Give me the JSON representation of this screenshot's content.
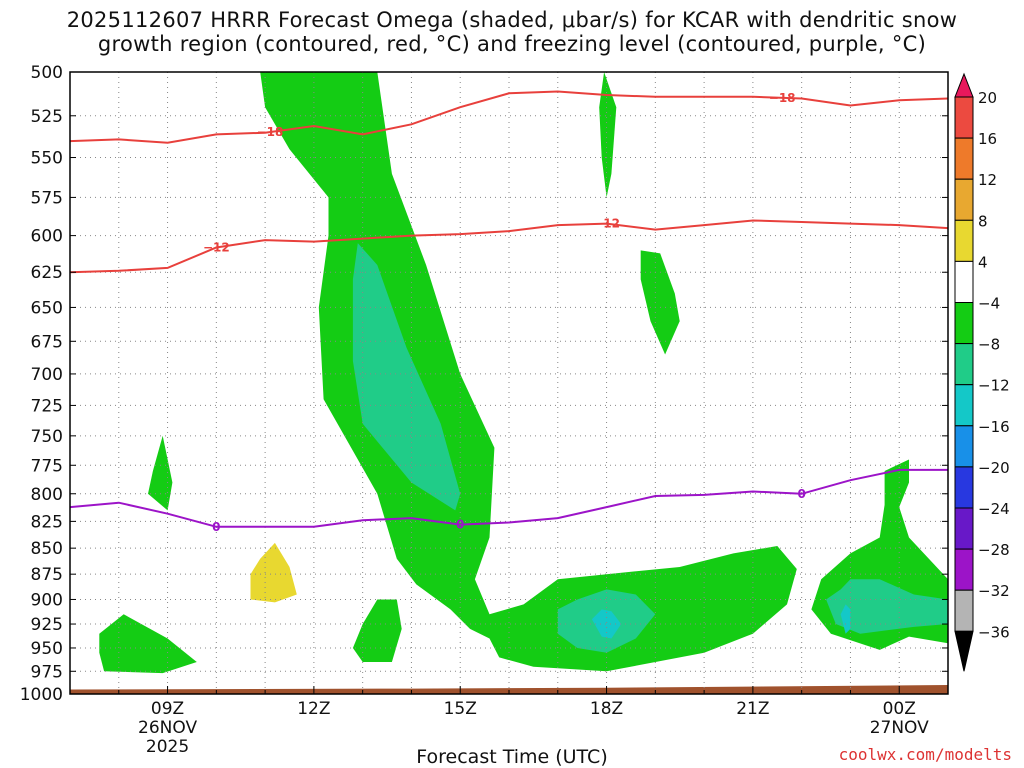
{
  "title": {
    "line1": "2025112607 HRRR Forecast Omega (shaded, μbar/s) for KCAR with dendritic snow",
    "line2": "growth region (contoured, red, °C) and freezing level (contoured, purple, °C)"
  },
  "xlabel": "Forecast Time (UTC)",
  "credit": "coolwx.com/modelts",
  "chart_data": {
    "type": "heatmap",
    "x_axis": {
      "ticks": [
        {
          "label": "09Z",
          "sub": [
            "26NOV",
            "2025"
          ],
          "hour": 9
        },
        {
          "label": "12Z",
          "sub": [],
          "hour": 12
        },
        {
          "label": "15Z",
          "sub": [],
          "hour": 15
        },
        {
          "label": "18Z",
          "sub": [],
          "hour": 18
        },
        {
          "label": "21Z",
          "sub": [],
          "hour": 21
        },
        {
          "label": "00Z",
          "sub": [
            "27NOV"
          ],
          "hour": 24
        }
      ],
      "range_hours": [
        7,
        25
      ]
    },
    "y_axis": {
      "ticks": [
        500,
        525,
        550,
        575,
        600,
        625,
        650,
        675,
        700,
        725,
        750,
        775,
        800,
        825,
        850,
        875,
        900,
        925,
        950,
        975,
        1000
      ],
      "range": [
        500,
        1000
      ],
      "scale": "log-pressure"
    },
    "grid": true,
    "colorbar": {
      "labels": [
        "20",
        "16",
        "12",
        "8",
        "4",
        "−4",
        "−8",
        "−12",
        "−16",
        "−20",
        "−24",
        "−28",
        "−32",
        "−36"
      ],
      "colors": [
        "#e8185c",
        "#ec4a40",
        "#ee7a2a",
        "#e8a830",
        "#e8d830",
        "#ffffff",
        "#14cc14",
        "#20cc88",
        "#14c8c8",
        "#1890e8",
        "#2838e0",
        "#6818c8",
        "#9c14c8",
        "#b4b4b4",
        "#000000"
      ]
    },
    "shaded_regions": [
      {
        "level": "-4",
        "color": "#14cc14",
        "polygons": [
          [
            [
              10.9,
              500
            ],
            [
              13.3,
              500
            ],
            [
              13.6,
              560
            ],
            [
              14.3,
              620
            ],
            [
              15.0,
              700
            ],
            [
              15.7,
              760
            ],
            [
              15.6,
              840
            ],
            [
              15.3,
              880
            ],
            [
              15.6,
              915
            ],
            [
              16.3,
              905
            ],
            [
              17.0,
              880
            ],
            [
              18.0,
              875
            ],
            [
              19.5,
              868
            ],
            [
              20.6,
              855
            ],
            [
              21.5,
              848
            ],
            [
              21.9,
              870
            ],
            [
              21.7,
              905
            ],
            [
              21.0,
              935
            ],
            [
              20.0,
              955
            ],
            [
              18.0,
              975
            ],
            [
              16.5,
              970
            ],
            [
              15.8,
              960
            ],
            [
              15.6,
              940
            ],
            [
              15.2,
              930
            ],
            [
              14.8,
              910
            ],
            [
              14.1,
              885
            ],
            [
              13.7,
              860
            ],
            [
              13.3,
              800
            ],
            [
              12.2,
              720
            ],
            [
              12.1,
              650
            ],
            [
              12.3,
              600
            ],
            [
              12.3,
              575
            ],
            [
              11.5,
              545
            ],
            [
              11.0,
              520
            ]
          ],
          [
            [
              7.6,
              935
            ],
            [
              8.1,
              915
            ],
            [
              9.0,
              940
            ],
            [
              9.6,
              965
            ],
            [
              8.9,
              977
            ],
            [
              7.7,
              975
            ],
            [
              7.6,
              955
            ]
          ],
          [
            [
              8.6,
              800
            ],
            [
              8.7,
              780
            ],
            [
              8.9,
              750
            ],
            [
              9.1,
              790
            ],
            [
              9.0,
              815
            ]
          ],
          [
            [
              13.3,
              900
            ],
            [
              13.7,
              900
            ],
            [
              13.8,
              930
            ],
            [
              13.6,
              965
            ],
            [
              13.0,
              965
            ],
            [
              12.8,
              950
            ],
            [
              13.0,
              925
            ]
          ],
          [
            [
              17.95,
              500
            ],
            [
              18.2,
              520
            ],
            [
              18.1,
              560
            ],
            [
              18.0,
              575
            ],
            [
              17.9,
              550
            ],
            [
              17.85,
              520
            ]
          ],
          [
            [
              18.7,
              610
            ],
            [
              19.1,
              612
            ],
            [
              19.4,
              640
            ],
            [
              19.5,
              660
            ],
            [
              19.2,
              685
            ],
            [
              18.9,
              660
            ],
            [
              18.7,
              630
            ]
          ],
          [
            [
              23.7,
              780
            ],
            [
              24.2,
              770
            ],
            [
              24.2,
              790
            ],
            [
              24.0,
              812
            ],
            [
              24.2,
              840
            ],
            [
              25.0,
              880
            ],
            [
              25.0,
              945
            ],
            [
              24.2,
              938
            ],
            [
              23.6,
              952
            ],
            [
              22.6,
              935
            ],
            [
              22.2,
              910
            ],
            [
              22.4,
              880
            ],
            [
              23.0,
              855
            ],
            [
              23.6,
              840
            ],
            [
              23.7,
              810
            ]
          ]
        ]
      },
      {
        "level": "-8",
        "color": "#20cc88",
        "polygons": [
          [
            [
              12.9,
              605
            ],
            [
              13.3,
              620
            ],
            [
              13.9,
              680
            ],
            [
              14.6,
              740
            ],
            [
              15.0,
              800
            ],
            [
              14.9,
              815
            ],
            [
              14.0,
              790
            ],
            [
              13.0,
              740
            ],
            [
              12.8,
              690
            ],
            [
              12.8,
              630
            ]
          ],
          [
            [
              17.0,
              910
            ],
            [
              17.4,
              900
            ],
            [
              18.0,
              890
            ],
            [
              18.6,
              895
            ],
            [
              19.0,
              915
            ],
            [
              18.6,
              940
            ],
            [
              18.0,
              955
            ],
            [
              17.4,
              950
            ],
            [
              17.0,
              935
            ]
          ],
          [
            [
              22.5,
              900
            ],
            [
              22.8,
              890
            ],
            [
              23.0,
              880
            ],
            [
              23.6,
              880
            ],
            [
              24.3,
              895
            ],
            [
              25.0,
              900
            ],
            [
              25.0,
              925
            ],
            [
              24.3,
              928
            ],
            [
              23.2,
              935
            ],
            [
              22.7,
              925
            ]
          ]
        ]
      },
      {
        "level": "-12",
        "color": "#14c8c8",
        "polygons": [
          [
            [
              17.7,
              920
            ],
            [
              17.9,
              910
            ],
            [
              18.1,
              912
            ],
            [
              18.3,
              925
            ],
            [
              18.1,
              940
            ],
            [
              17.9,
              938
            ]
          ],
          [
            [
              22.8,
              915
            ],
            [
              22.9,
              905
            ],
            [
              23.0,
              910
            ],
            [
              23.0,
              930
            ],
            [
              22.9,
              935
            ]
          ]
        ]
      },
      {
        "level": "4",
        "color": "#e8d830",
        "polygons": [
          [
            [
              10.7,
              875
            ],
            [
              10.9,
              860
            ],
            [
              11.2,
              845
            ],
            [
              11.5,
              868
            ],
            [
              11.65,
              895
            ],
            [
              11.2,
              903
            ],
            [
              10.7,
              900
            ]
          ]
        ]
      }
    ],
    "terrain": {
      "color": "#a0522d",
      "points": [
        [
          7,
          995
        ],
        [
          14,
          994
        ],
        [
          18,
          993
        ],
        [
          25,
          990
        ]
      ]
    },
    "contours": [
      {
        "name": "-18",
        "color": "#e8403c",
        "label_at": [
          {
            "x": 11.1,
            "text": "−18"
          },
          {
            "x": 21.6,
            "text": "−18"
          }
        ],
        "points": [
          [
            7,
            540
          ],
          [
            8,
            539
          ],
          [
            9,
            541
          ],
          [
            10,
            536
          ],
          [
            11,
            535
          ],
          [
            12,
            531
          ],
          [
            13,
            536
          ],
          [
            14,
            530
          ],
          [
            15,
            520
          ],
          [
            16,
            512
          ],
          [
            17,
            511
          ],
          [
            18,
            513
          ],
          [
            19,
            514
          ],
          [
            20,
            514
          ],
          [
            21,
            514
          ],
          [
            22,
            515
          ],
          [
            23,
            519
          ],
          [
            24,
            516
          ],
          [
            25,
            515
          ]
        ]
      },
      {
        "name": "-12",
        "color": "#e8403c",
        "label_at": [
          {
            "x": 10.0,
            "text": "−12"
          },
          {
            "x": 18.0,
            "text": "−12"
          }
        ],
        "points": [
          [
            7,
            625
          ],
          [
            8,
            624
          ],
          [
            9,
            622
          ],
          [
            10,
            608
          ],
          [
            11,
            603
          ],
          [
            12,
            604
          ],
          [
            13,
            602
          ],
          [
            14,
            600
          ],
          [
            15,
            599
          ],
          [
            16,
            597
          ],
          [
            17,
            593
          ],
          [
            18,
            592
          ],
          [
            19,
            596
          ],
          [
            20,
            593
          ],
          [
            21,
            590
          ],
          [
            22,
            591
          ],
          [
            23,
            592
          ],
          [
            24,
            593
          ],
          [
            25,
            595
          ]
        ]
      },
      {
        "name": "0",
        "color": "#9c14c8",
        "label_at": [
          {
            "x": 10.0,
            "text": "0"
          },
          {
            "x": 15.0,
            "text": "0"
          },
          {
            "x": 22.0,
            "text": "0"
          }
        ],
        "points": [
          [
            7,
            812
          ],
          [
            8,
            808
          ],
          [
            9,
            818
          ],
          [
            10,
            830
          ],
          [
            11,
            830
          ],
          [
            12,
            830
          ],
          [
            13,
            824
          ],
          [
            14,
            822
          ],
          [
            15,
            828
          ],
          [
            16,
            826
          ],
          [
            17,
            822
          ],
          [
            18,
            812
          ],
          [
            19,
            802
          ],
          [
            20,
            801
          ],
          [
            21,
            798
          ],
          [
            22,
            800
          ],
          [
            23,
            788
          ],
          [
            24,
            779
          ],
          [
            25,
            779
          ]
        ]
      }
    ]
  }
}
